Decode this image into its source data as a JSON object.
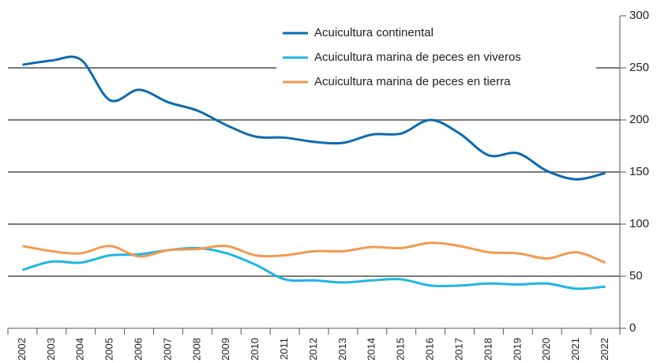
{
  "chart_data": {
    "type": "line",
    "categories": [
      "2002",
      "2003",
      "2004",
      "2005",
      "2006",
      "2007",
      "2008",
      "2009",
      "2010",
      "2011",
      "2012",
      "2013",
      "2014",
      "2015",
      "2016",
      "2017",
      "2018",
      "2019",
      "2020",
      "2021",
      "2022"
    ],
    "series": [
      {
        "name": "Acuicultura continental",
        "color": "#0b6ab0",
        "values": [
          253,
          257,
          258,
          219,
          229,
          217,
          209,
          195,
          184,
          183,
          179,
          178,
          186,
          187,
          200,
          187,
          166,
          168,
          151,
          143,
          149
        ]
      },
      {
        "name": "Acuicultura marina de peces en viveros",
        "color": "#1db6e6",
        "values": [
          56,
          64,
          63,
          70,
          71,
          75,
          77,
          72,
          61,
          47,
          46,
          44,
          46,
          47,
          41,
          41,
          43,
          42,
          43,
          38,
          40
        ]
      },
      {
        "name": "Acuicultura marina de peces en tierra",
        "color": "#f39a4e",
        "values": [
          79,
          74,
          72,
          79,
          69,
          75,
          76,
          79,
          70,
          70,
          74,
          74,
          78,
          77,
          82,
          79,
          73,
          72,
          67,
          73,
          63
        ]
      }
    ],
    "ylim": [
      0,
      300
    ],
    "yticks": [
      0,
      50,
      100,
      150,
      200,
      250,
      300
    ],
    "grid": true,
    "legend": "top"
  }
}
